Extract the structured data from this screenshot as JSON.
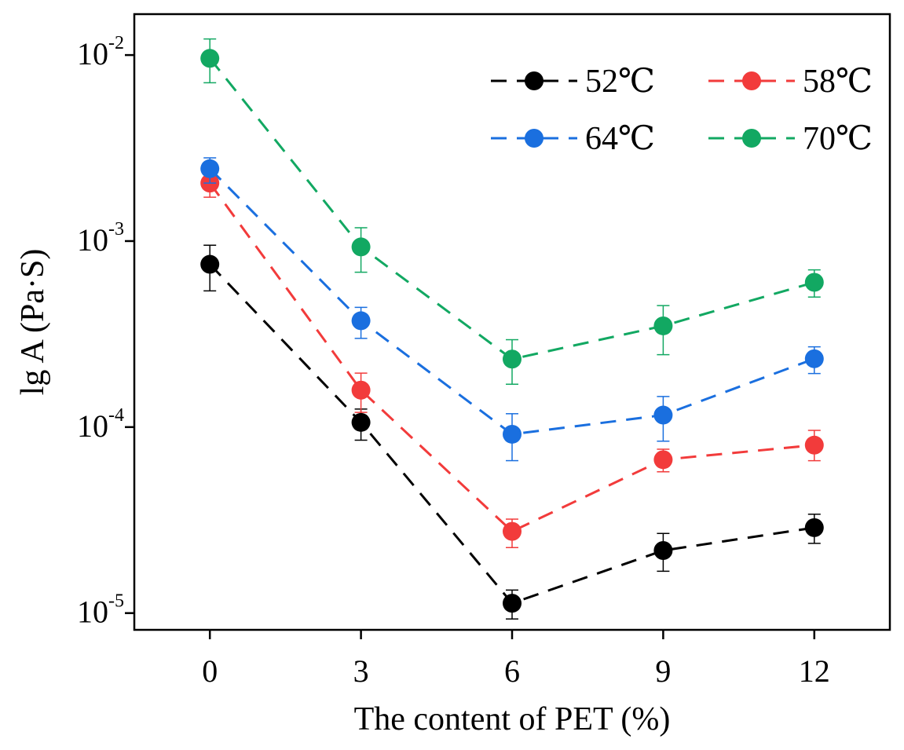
{
  "chart_data": {
    "type": "scatter",
    "title": "",
    "xlabel": "The content of PET (%)",
    "ylabel": "lg A (Pa·S)",
    "x": [
      0,
      3,
      6,
      9,
      12
    ],
    "xlim": [
      -1.5,
      13.5
    ],
    "xticks": [
      "0",
      "3",
      "6",
      "9",
      "12"
    ],
    "yscale": "log",
    "ylim_log10": [
      -5.09,
      -1.78
    ],
    "yticks": [
      {
        "base": "10",
        "exp": "-5",
        "log": -5
      },
      {
        "base": "10",
        "exp": "-4",
        "log": -4
      },
      {
        "base": "10",
        "exp": "-3",
        "log": -3
      },
      {
        "base": "10",
        "exp": "-2",
        "log": -2
      }
    ],
    "legend_position": "top-right",
    "series": [
      {
        "name": "52℃",
        "color": "#000000",
        "values": [
          0.00075,
          0.000106,
          1.13e-05,
          2.17e-05,
          2.88e-05
        ],
        "err_low": [
          0.00054,
          8.5e-05,
          9.3e-06,
          1.68e-05,
          2.37e-05
        ],
        "err_high": [
          0.00095,
          0.000125,
          1.33e-05,
          2.68e-05,
          3.4e-05
        ]
      },
      {
        "name": "58℃",
        "color": "#f23b3b",
        "values": [
          0.00205,
          0.000158,
          2.75e-05,
          6.68e-05,
          8e-05
        ],
        "err_low": [
          0.00172,
          0.00012,
          2.25e-05,
          5.75e-05,
          6.6e-05
        ],
        "err_high": [
          0.0024,
          0.000195,
          3.2e-05,
          7.6e-05,
          9.6e-05
        ]
      },
      {
        "name": "64℃",
        "color": "#1a6fdf",
        "values": [
          0.00245,
          0.000373,
          9.15e-05,
          0.000116,
          0.000233
        ],
        "err_low": [
          0.00205,
          0.0003,
          6.6e-05,
          8.4e-05,
          0.000194
        ],
        "err_high": [
          0.0028,
          0.00044,
          0.000118,
          0.000146,
          0.00027
        ]
      },
      {
        "name": "70℃",
        "color": "#12a862",
        "values": [
          0.0096,
          0.00093,
          0.000232,
          0.00035,
          0.0006
        ],
        "err_low": [
          0.0071,
          0.00068,
          0.00017,
          0.000245,
          0.0005
        ],
        "err_high": [
          0.0122,
          0.00118,
          0.000295,
          0.00045,
          0.0007
        ]
      }
    ]
  }
}
